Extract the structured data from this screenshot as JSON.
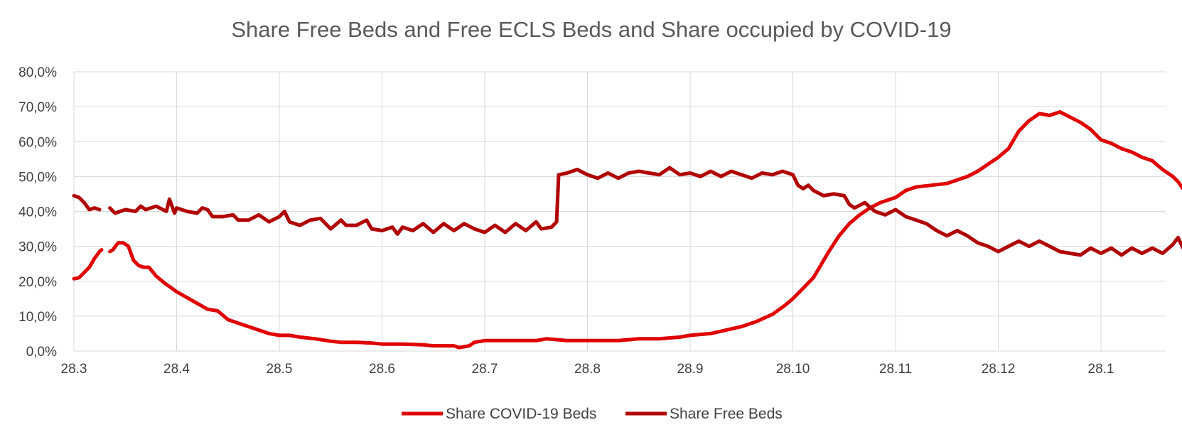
{
  "chart_data": {
    "type": "line",
    "title": "Share Free Beds and Free ECLS Beds and Share occupied by COVID-19",
    "xlabel": "",
    "ylabel": "",
    "categories": [
      "28.3",
      "28.4",
      "28.5",
      "28.6",
      "28.7",
      "28.8",
      "28.9",
      "28.10",
      "28.11",
      "28.12",
      "28.1"
    ],
    "y_ticks": [
      "0,0%",
      "10,0%",
      "20,0%",
      "30,0%",
      "40,0%",
      "50,0%",
      "60,0%",
      "70,0%",
      "80,0%"
    ],
    "ylim": [
      0,
      80
    ],
    "grid": true,
    "legend_position": "bottom",
    "series": [
      {
        "name": "Share COVID-19 Beds",
        "color": "#e00000",
        "points": [
          [
            0.0,
            20.7
          ],
          [
            0.05,
            21.0
          ],
          [
            0.1,
            22.5
          ],
          [
            0.15,
            24.0
          ],
          [
            0.2,
            26.5
          ],
          [
            0.25,
            28.5
          ],
          [
            0.27,
            29.0
          ],
          null,
          [
            0.35,
            28.5
          ],
          [
            0.38,
            29.0
          ],
          [
            0.43,
            31.0
          ],
          [
            0.48,
            31.0
          ],
          [
            0.53,
            30.0
          ],
          [
            0.58,
            26.0
          ],
          [
            0.63,
            24.5
          ],
          [
            0.68,
            24.0
          ],
          [
            0.73,
            24.0
          ],
          [
            0.8,
            21.5
          ],
          [
            0.88,
            19.5
          ],
          [
            1.0,
            17.0
          ],
          [
            1.15,
            14.5
          ],
          [
            1.3,
            12.0
          ],
          [
            1.4,
            11.5
          ],
          [
            1.5,
            9.0
          ],
          [
            1.6,
            8.0
          ],
          [
            1.7,
            7.0
          ],
          [
            1.8,
            6.0
          ],
          [
            1.9,
            5.0
          ],
          [
            2.0,
            4.5
          ],
          [
            2.1,
            4.5
          ],
          [
            2.2,
            4.0
          ],
          [
            2.35,
            3.5
          ],
          [
            2.5,
            2.8
          ],
          [
            2.6,
            2.5
          ],
          [
            2.75,
            2.5
          ],
          [
            2.9,
            2.3
          ],
          [
            3.0,
            2.0
          ],
          [
            3.2,
            2.0
          ],
          [
            3.4,
            1.8
          ],
          [
            3.5,
            1.5
          ],
          [
            3.7,
            1.5
          ],
          [
            3.75,
            1.0
          ],
          [
            3.85,
            1.5
          ],
          [
            3.9,
            2.5
          ],
          [
            4.0,
            3.0
          ],
          [
            4.2,
            3.0
          ],
          [
            4.5,
            3.0
          ],
          [
            4.6,
            3.5
          ],
          [
            4.8,
            3.0
          ],
          [
            5.0,
            3.0
          ],
          [
            5.3,
            3.0
          ],
          [
            5.5,
            3.5
          ],
          [
            5.7,
            3.5
          ],
          [
            5.9,
            4.0
          ],
          [
            6.0,
            4.5
          ],
          [
            6.2,
            5.0
          ],
          [
            6.35,
            6.0
          ],
          [
            6.5,
            7.0
          ],
          [
            6.65,
            8.5
          ],
          [
            6.8,
            10.5
          ],
          [
            6.92,
            13.0
          ],
          [
            7.0,
            15.0
          ],
          [
            7.1,
            18.0
          ],
          [
            7.2,
            21.0
          ],
          [
            7.28,
            25.0
          ],
          [
            7.35,
            28.5
          ],
          [
            7.45,
            33.0
          ],
          [
            7.55,
            36.5
          ],
          [
            7.65,
            39.0
          ],
          [
            7.75,
            41.0
          ],
          [
            7.85,
            42.5
          ],
          [
            8.0,
            44.0
          ],
          [
            8.1,
            46.0
          ],
          [
            8.2,
            47.0
          ],
          [
            8.35,
            47.5
          ],
          [
            8.5,
            48.0
          ],
          [
            8.6,
            49.0
          ],
          [
            8.7,
            50.0
          ],
          [
            8.8,
            51.5
          ],
          [
            8.9,
            53.5
          ],
          [
            9.0,
            55.5
          ],
          [
            9.1,
            58.0
          ],
          [
            9.2,
            63.0
          ],
          [
            9.3,
            66.0
          ],
          [
            9.4,
            68.0
          ],
          [
            9.5,
            67.5
          ],
          [
            9.6,
            68.5
          ],
          [
            9.7,
            67.0
          ],
          [
            9.8,
            65.5
          ],
          [
            9.9,
            63.5
          ],
          [
            10.0,
            60.5
          ],
          [
            10.1,
            59.5
          ],
          [
            10.2,
            58.0
          ],
          [
            10.3,
            57.0
          ],
          [
            10.4,
            55.5
          ],
          [
            10.5,
            54.5
          ],
          [
            10.6,
            52.0
          ],
          [
            10.7,
            50.0
          ],
          [
            10.75,
            48.5
          ],
          [
            10.8,
            46.5
          ],
          [
            10.85,
            45.5
          ],
          [
            10.9,
            45.5
          ]
        ]
      },
      {
        "name": "Share Free Beds",
        "color": "#b00000",
        "points": [
          [
            0.0,
            44.5
          ],
          [
            0.05,
            44.0
          ],
          [
            0.1,
            42.5
          ],
          [
            0.15,
            40.5
          ],
          [
            0.2,
            41.0
          ],
          [
            0.25,
            40.5
          ],
          null,
          [
            0.35,
            41.0
          ],
          [
            0.4,
            39.5
          ],
          [
            0.5,
            40.5
          ],
          [
            0.6,
            40.0
          ],
          [
            0.65,
            41.5
          ],
          [
            0.7,
            40.5
          ],
          [
            0.8,
            41.5
          ],
          [
            0.9,
            40.0
          ],
          [
            0.93,
            43.5
          ],
          [
            0.98,
            39.5
          ],
          [
            1.0,
            41.0
          ],
          [
            1.1,
            40.0
          ],
          [
            1.2,
            39.5
          ],
          [
            1.25,
            41.0
          ],
          [
            1.3,
            40.5
          ],
          [
            1.35,
            38.5
          ],
          [
            1.45,
            38.5
          ],
          [
            1.55,
            39.0
          ],
          [
            1.6,
            37.5
          ],
          [
            1.7,
            37.5
          ],
          [
            1.8,
            39.0
          ],
          [
            1.9,
            37.0
          ],
          [
            2.0,
            38.5
          ],
          [
            2.05,
            40.0
          ],
          [
            2.1,
            37.0
          ],
          [
            2.2,
            36.0
          ],
          [
            2.3,
            37.5
          ],
          [
            2.4,
            38.0
          ],
          [
            2.5,
            35.0
          ],
          [
            2.6,
            37.5
          ],
          [
            2.65,
            36.0
          ],
          [
            2.75,
            36.0
          ],
          [
            2.85,
            37.5
          ],
          [
            2.9,
            35.0
          ],
          [
            3.0,
            34.5
          ],
          [
            3.1,
            35.5
          ],
          [
            3.15,
            33.5
          ],
          [
            3.2,
            35.5
          ],
          [
            3.3,
            34.5
          ],
          [
            3.4,
            36.5
          ],
          [
            3.5,
            34.0
          ],
          [
            3.6,
            36.5
          ],
          [
            3.7,
            34.5
          ],
          [
            3.8,
            36.5
          ],
          [
            3.9,
            35.0
          ],
          [
            4.0,
            34.0
          ],
          [
            4.1,
            36.0
          ],
          [
            4.2,
            34.0
          ],
          [
            4.3,
            36.5
          ],
          [
            4.4,
            34.5
          ],
          [
            4.5,
            37.0
          ],
          [
            4.55,
            35.0
          ],
          [
            4.65,
            35.5
          ],
          [
            4.7,
            37.0
          ],
          [
            4.72,
            50.5
          ],
          [
            4.8,
            51.0
          ],
          [
            4.9,
            52.0
          ],
          [
            5.0,
            50.5
          ],
          [
            5.1,
            49.5
          ],
          [
            5.2,
            51.0
          ],
          [
            5.3,
            49.5
          ],
          [
            5.4,
            51.0
          ],
          [
            5.5,
            51.5
          ],
          [
            5.6,
            51.0
          ],
          [
            5.7,
            50.5
          ],
          [
            5.8,
            52.5
          ],
          [
            5.9,
            50.5
          ],
          [
            6.0,
            51.0
          ],
          [
            6.1,
            50.0
          ],
          [
            6.2,
            51.5
          ],
          [
            6.3,
            50.0
          ],
          [
            6.4,
            51.5
          ],
          [
            6.5,
            50.5
          ],
          [
            6.6,
            49.5
          ],
          [
            6.7,
            51.0
          ],
          [
            6.8,
            50.5
          ],
          [
            6.9,
            51.5
          ],
          [
            7.0,
            50.5
          ],
          [
            7.05,
            47.5
          ],
          [
            7.1,
            46.5
          ],
          [
            7.15,
            47.5
          ],
          [
            7.2,
            46.0
          ],
          [
            7.3,
            44.5
          ],
          [
            7.4,
            45.0
          ],
          [
            7.5,
            44.5
          ],
          [
            7.55,
            42.0
          ],
          [
            7.6,
            41.0
          ],
          [
            7.7,
            42.5
          ],
          [
            7.8,
            40.0
          ],
          [
            7.9,
            39.0
          ],
          [
            8.0,
            40.5
          ],
          [
            8.1,
            38.5
          ],
          [
            8.2,
            37.5
          ],
          [
            8.3,
            36.5
          ],
          [
            8.4,
            34.5
          ],
          [
            8.5,
            33.0
          ],
          [
            8.6,
            34.5
          ],
          [
            8.7,
            33.0
          ],
          [
            8.8,
            31.0
          ],
          [
            8.9,
            30.0
          ],
          [
            9.0,
            28.5
          ],
          [
            9.1,
            30.0
          ],
          [
            9.2,
            31.5
          ],
          [
            9.3,
            30.0
          ],
          [
            9.4,
            31.5
          ],
          [
            9.5,
            30.0
          ],
          [
            9.6,
            28.5
          ],
          [
            9.7,
            28.0
          ],
          [
            9.8,
            27.5
          ],
          [
            9.9,
            29.5
          ],
          [
            10.0,
            28.0
          ],
          [
            10.1,
            29.5
          ],
          [
            10.2,
            27.5
          ],
          [
            10.3,
            29.5
          ],
          [
            10.4,
            28.0
          ],
          [
            10.5,
            29.5
          ],
          [
            10.6,
            28.0
          ],
          [
            10.7,
            30.5
          ],
          [
            10.75,
            32.5
          ],
          [
            10.8,
            29.5
          ],
          [
            10.85,
            30.5
          ],
          [
            10.9,
            32.5
          ]
        ]
      }
    ]
  }
}
